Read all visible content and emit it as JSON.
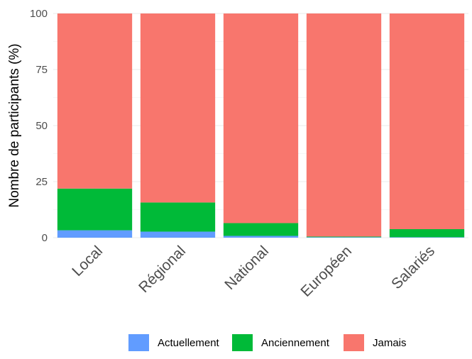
{
  "chart_data": {
    "type": "bar",
    "stacked": true,
    "categories": [
      "Local",
      "Régional",
      "National",
      "Européen",
      "Salariés"
    ],
    "series": [
      {
        "name": "Actuellement",
        "values": [
          3.3,
          2.7,
          0.8,
          0.2,
          0.2
        ],
        "color": "#619CFF"
      },
      {
        "name": "Anciennement",
        "values": [
          18.6,
          13.0,
          5.7,
          0.3,
          3.6
        ],
        "color": "#00BA38"
      },
      {
        "name": "Jamais",
        "values": [
          78.1,
          84.3,
          93.5,
          99.5,
          96.2
        ],
        "color": "#F8766D"
      }
    ],
    "title": "",
    "xlabel": "",
    "ylabel": "Nombre de participants (%)",
    "ylim": [
      0,
      100
    ],
    "yticks": [
      0,
      25,
      50,
      75,
      100
    ],
    "grid": true,
    "legend_position": "bottom",
    "legend": [
      "Actuellement",
      "Anciennement",
      "Jamais"
    ]
  }
}
